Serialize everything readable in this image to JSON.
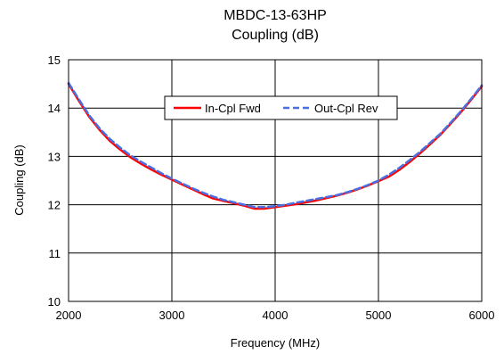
{
  "chart_data": {
    "type": "line",
    "title": "MBDC-13-63HP",
    "subtitle": "Coupling (dB)",
    "xlabel": "Frequency (MHz)",
    "ylabel": "Coupling (dB)",
    "xlim": [
      2000,
      6000
    ],
    "ylim": [
      10,
      15
    ],
    "xticks": [
      2000,
      3000,
      4000,
      5000,
      6000
    ],
    "yticks": [
      10,
      11,
      12,
      13,
      14,
      15
    ],
    "grid": true,
    "legend_position": "top-center",
    "series": [
      {
        "name": "In-Cpl Fwd",
        "color": "#ff0000",
        "dash": "solid",
        "x": [
          2000,
          2100,
          2200,
          2300,
          2400,
          2500,
          2600,
          2700,
          2800,
          2900,
          3000,
          3100,
          3200,
          3300,
          3400,
          3500,
          3600,
          3700,
          3800,
          3900,
          4000,
          4100,
          4200,
          4300,
          4400,
          4500,
          4600,
          4700,
          4800,
          4900,
          5000,
          5100,
          5200,
          5300,
          5400,
          5500,
          5600,
          5700,
          5800,
          5900,
          6000
        ],
        "y": [
          14.5,
          14.15,
          13.82,
          13.55,
          13.32,
          13.14,
          12.98,
          12.85,
          12.73,
          12.62,
          12.52,
          12.42,
          12.32,
          12.22,
          12.13,
          12.08,
          12.03,
          11.98,
          11.92,
          11.92,
          11.95,
          11.98,
          12.01,
          12.05,
          12.09,
          12.14,
          12.19,
          12.25,
          12.32,
          12.4,
          12.49,
          12.58,
          12.72,
          12.88,
          13.06,
          13.25,
          13.45,
          13.68,
          13.92,
          14.18,
          14.45
        ]
      },
      {
        "name": "Out-Cpl Rev",
        "color": "#4a6fe0",
        "dash": "dashed",
        "x": [
          2000,
          2100,
          2200,
          2300,
          2400,
          2500,
          2600,
          2700,
          2800,
          2900,
          3000,
          3100,
          3200,
          3300,
          3400,
          3500,
          3600,
          3700,
          3800,
          3900,
          4000,
          4100,
          4200,
          4300,
          4400,
          4500,
          4600,
          4700,
          4800,
          4900,
          5000,
          5100,
          5200,
          5300,
          5400,
          5500,
          5600,
          5700,
          5800,
          5900,
          6000
        ],
        "y": [
          14.52,
          14.18,
          13.85,
          13.58,
          13.36,
          13.18,
          13.02,
          12.89,
          12.77,
          12.65,
          12.54,
          12.44,
          12.34,
          12.25,
          12.17,
          12.1,
          12.05,
          12.0,
          11.95,
          11.95,
          11.97,
          12.0,
          12.04,
          12.08,
          12.12,
          12.16,
          12.2,
          12.26,
          12.33,
          12.41,
          12.5,
          12.62,
          12.76,
          12.92,
          13.09,
          13.28,
          13.47,
          13.7,
          13.94,
          14.2,
          14.47
        ]
      }
    ]
  }
}
